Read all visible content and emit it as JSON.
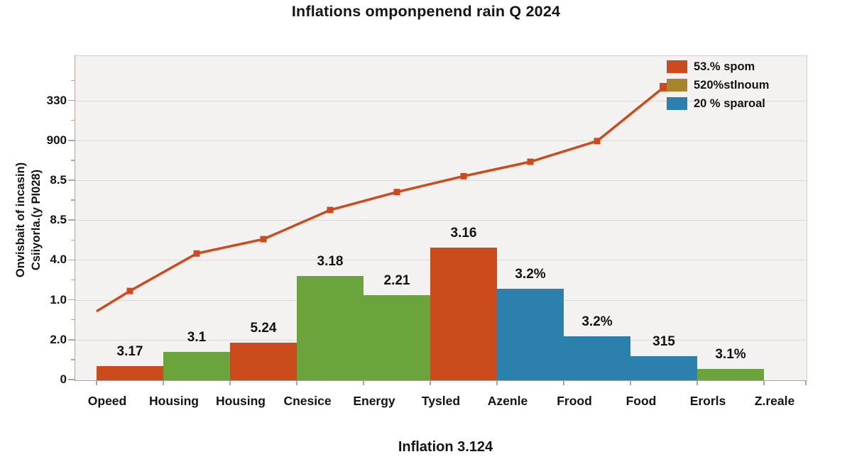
{
  "colors": {
    "orange": "#cc4b1c",
    "green": "#6ba43c",
    "blue": "#2b80ae",
    "gold": "#a8842c",
    "plot_bg": "#f3f2f0",
    "grid": "#dcd9d5",
    "axis": "#a9a6a2",
    "text": "#141414"
  },
  "chart_data": {
    "type": "bar",
    "overlay": "line",
    "title": "Inflations omponpenend rain Q 2024",
    "caption": "Inflation 3.124",
    "ylabel_lines": [
      "Onvisbait of incasin)",
      "Csiiyorla.(y PI028)"
    ],
    "y_tick_labels_bottom_up": [
      "0",
      "2.0",
      "1.0",
      "4.0",
      "8.5",
      "8.5",
      "900",
      "330"
    ],
    "categories": [
      "Opeed",
      "Housing",
      "Housing",
      "Cnesice",
      "Energy",
      "Tysled",
      "Azenle",
      "Frood",
      "Food",
      "Erorls",
      "Z.reale"
    ],
    "bars": [
      {
        "category": "Opeed",
        "label": "3.17",
        "display_value": 0.36,
        "color": "orange"
      },
      {
        "category": "Housing",
        "label": "3.1",
        "display_value": 0.71,
        "color": "green"
      },
      {
        "category": "Housing",
        "label": "5.24",
        "display_value": 0.94,
        "color": "orange"
      },
      {
        "category": "Cnesice",
        "label": "3.18",
        "display_value": 2.62,
        "color": "green"
      },
      {
        "category": "Energy",
        "label": "2.21",
        "display_value": 2.14,
        "color": "green"
      },
      {
        "category": "Tysled",
        "label": "3.16",
        "display_value": 3.33,
        "color": "orange"
      },
      {
        "category": "Azenle",
        "label": "3.2%",
        "display_value": 2.3,
        "color": "blue"
      },
      {
        "category": "Frood",
        "label": "3.2%",
        "display_value": 1.1,
        "color": "blue"
      },
      {
        "category": "Food",
        "label": "315",
        "display_value": 0.6,
        "color": "blue"
      },
      {
        "category": "Erorls",
        "label": "3.1%",
        "display_value": 0.28,
        "color": "green"
      },
      {
        "category": "Z.reale",
        "label": "",
        "display_value": null,
        "color": null
      }
    ],
    "line_series": {
      "name": "53.% spom",
      "color_key": "orange",
      "start_value": 1.73,
      "values_at_category_centers": [
        2.24,
        3.18,
        3.54,
        4.27,
        4.72,
        5.12,
        5.48,
        6.0,
        7.35
      ]
    },
    "legend": [
      {
        "label": "53.% spom",
        "color": "#cc4b1c"
      },
      {
        "label": "520%stlnoum",
        "color": "#a8842c"
      },
      {
        "label": "20 % sparoal",
        "color": "#2b80ae"
      }
    ],
    "grid": true,
    "legend_position": "top-right"
  }
}
